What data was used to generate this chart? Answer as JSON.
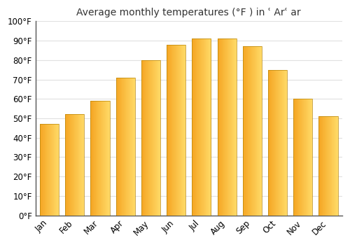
{
  "title": "Average monthly temperatures (°F ) in ʿ Arʿ ar",
  "months": [
    "Jan",
    "Feb",
    "Mar",
    "Apr",
    "May",
    "Jun",
    "Jul",
    "Aug",
    "Sep",
    "Oct",
    "Nov",
    "Dec"
  ],
  "values": [
    47,
    52,
    59,
    71,
    80,
    88,
    91,
    91,
    87,
    75,
    60,
    51
  ],
  "bar_color_left": "#F5A623",
  "bar_color_right": "#FFD966",
  "ylim": [
    0,
    100
  ],
  "yticks": [
    0,
    10,
    20,
    30,
    40,
    50,
    60,
    70,
    80,
    90,
    100
  ],
  "ytick_labels": [
    "0°F",
    "10°F",
    "20°F",
    "30°F",
    "40°F",
    "50°F",
    "60°F",
    "70°F",
    "80°F",
    "90°F",
    "100°F"
  ],
  "title_fontsize": 10,
  "tick_fontsize": 8.5,
  "background_color": "#ffffff",
  "plot_bg_color": "#ffffff",
  "grid_color": "#e0e0e0",
  "bar_edge_color": "#b8860b",
  "bar_edge_width": 0.5,
  "bar_width": 0.75,
  "n_gradient_steps": 50
}
